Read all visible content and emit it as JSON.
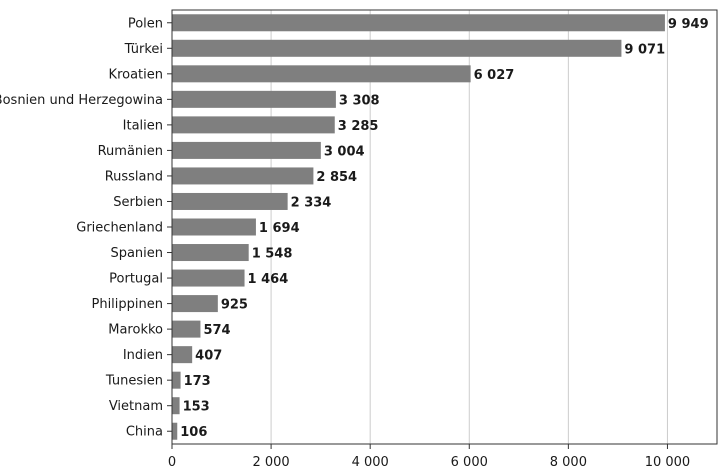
{
  "chart_data": {
    "type": "bar",
    "orientation": "horizontal",
    "title": "",
    "xlabel": "",
    "ylabel": "",
    "categories": [
      "Polen",
      "Türkei",
      "Kroatien",
      "Bosnien und Herzegowina",
      "Italien",
      "Rumänien",
      "Russland",
      "Serbien",
      "Griechenland",
      "Spanien",
      "Portugal",
      "Philippinen",
      "Marokko",
      "Indien",
      "Tunesien",
      "Vietnam",
      "China"
    ],
    "values": [
      9949,
      9071,
      6027,
      3308,
      3285,
      3004,
      2854,
      2334,
      1694,
      1548,
      1464,
      925,
      574,
      407,
      173,
      153,
      106
    ],
    "value_labels": [
      "9 949",
      "9 071",
      "6 027",
      "3 308",
      "3 285",
      "3 004",
      "2 854",
      "2 334",
      "1 694",
      "1 548",
      "1 464",
      "925",
      "574",
      "407",
      "173",
      "153",
      "106"
    ],
    "xlim": [
      0,
      11000
    ],
    "xticks": [
      0,
      2000,
      4000,
      6000,
      8000,
      10000
    ],
    "xtick_labels": [
      "0",
      "2 000",
      "4 000",
      "6 000",
      "8 000",
      "10 000"
    ],
    "grid": "vertical",
    "legend": "none",
    "colors": {
      "bar": "#7f7f7f",
      "grid": "#cccccc",
      "axis": "#333333",
      "text": "#1a1a1a"
    }
  }
}
